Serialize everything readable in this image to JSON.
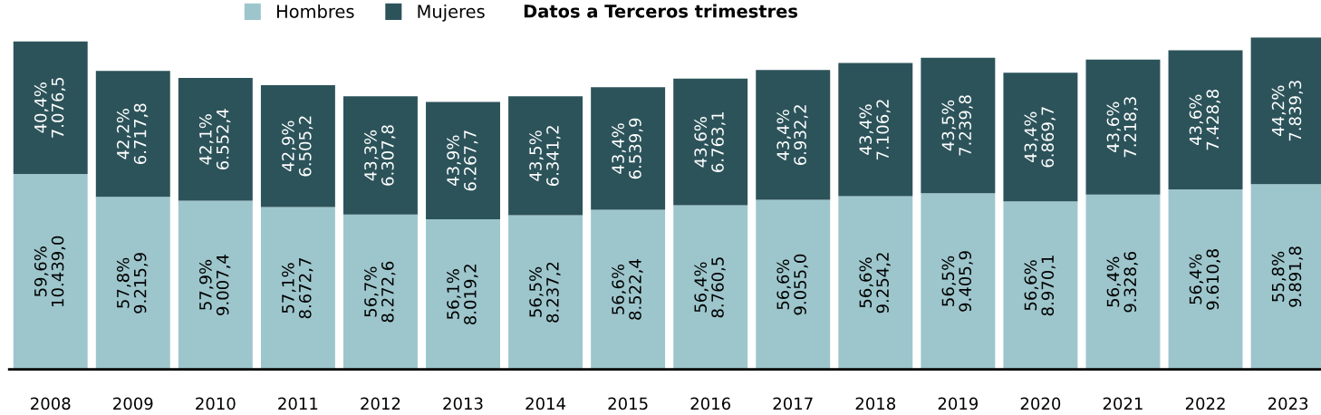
{
  "chart_data": {
    "type": "bar",
    "stacked": true,
    "title": "Datos a Terceros trimestres",
    "legend": "top left",
    "grid": false,
    "categories": [
      "2008",
      "2009",
      "2010",
      "2011",
      "2012",
      "2013",
      "2014",
      "2015",
      "2016",
      "2017",
      "2018",
      "2019",
      "2020",
      "2021",
      "2022",
      "2023"
    ],
    "series": [
      {
        "name": "Hombres",
        "color": "#9dc6cc",
        "values": [
          10439.0,
          9215.9,
          9007.4,
          8672.7,
          8272.6,
          8019.2,
          8237.2,
          8522.4,
          8760.5,
          9055.0,
          9254.2,
          9405.9,
          8970.1,
          9328.6,
          9610.8,
          9891.8
        ],
        "value_labels": [
          "59,6%\n10.439,0",
          "57,8%\n9.215,9",
          "57,9%\n9.007,4",
          "57,1%\n8.672,7",
          "56,7%\n8.272,6",
          "56,1%\n8.019,2",
          "56,5%\n8.237,2",
          "56,6%\n8.522,4",
          "56,4%\n8.760,5",
          "56,6%\n9.055,0",
          "56,6%\n9.254,2",
          "56,5%\n9.405,9",
          "56,6%\n8.970,1",
          "56,4%\n9.328,6",
          "56,4%\n9.610,8",
          "55,8%\n9.891,8"
        ]
      },
      {
        "name": "Mujeres",
        "color": "#2c535a",
        "values": [
          7076.5,
          6717.8,
          6552.4,
          6505.2,
          6307.8,
          6267.7,
          6341.2,
          6539.9,
          6763.1,
          6932.2,
          7106.2,
          7239.8,
          6869.7,
          7218.3,
          7428.8,
          7839.3
        ],
        "value_labels": [
          "40,4%\n7.076,5",
          "42,2%\n6.717,8",
          "42,1%\n6.552,4",
          "42,9%\n6.505,2",
          "43,3%\n6.307,8",
          "43,9%\n6.267,7",
          "43,5%\n6.341,2",
          "43,4%\n6.539,9",
          "43,6%\n6.763,1",
          "43,4%\n6.932,2",
          "43,4%\n7.106,2",
          "43,5%\n7.239,8",
          "43,4%\n6.869,7",
          "43,6%\n7.218,3",
          "43,6%\n7.428,8",
          "44,2%\n7.839,3"
        ]
      }
    ]
  }
}
